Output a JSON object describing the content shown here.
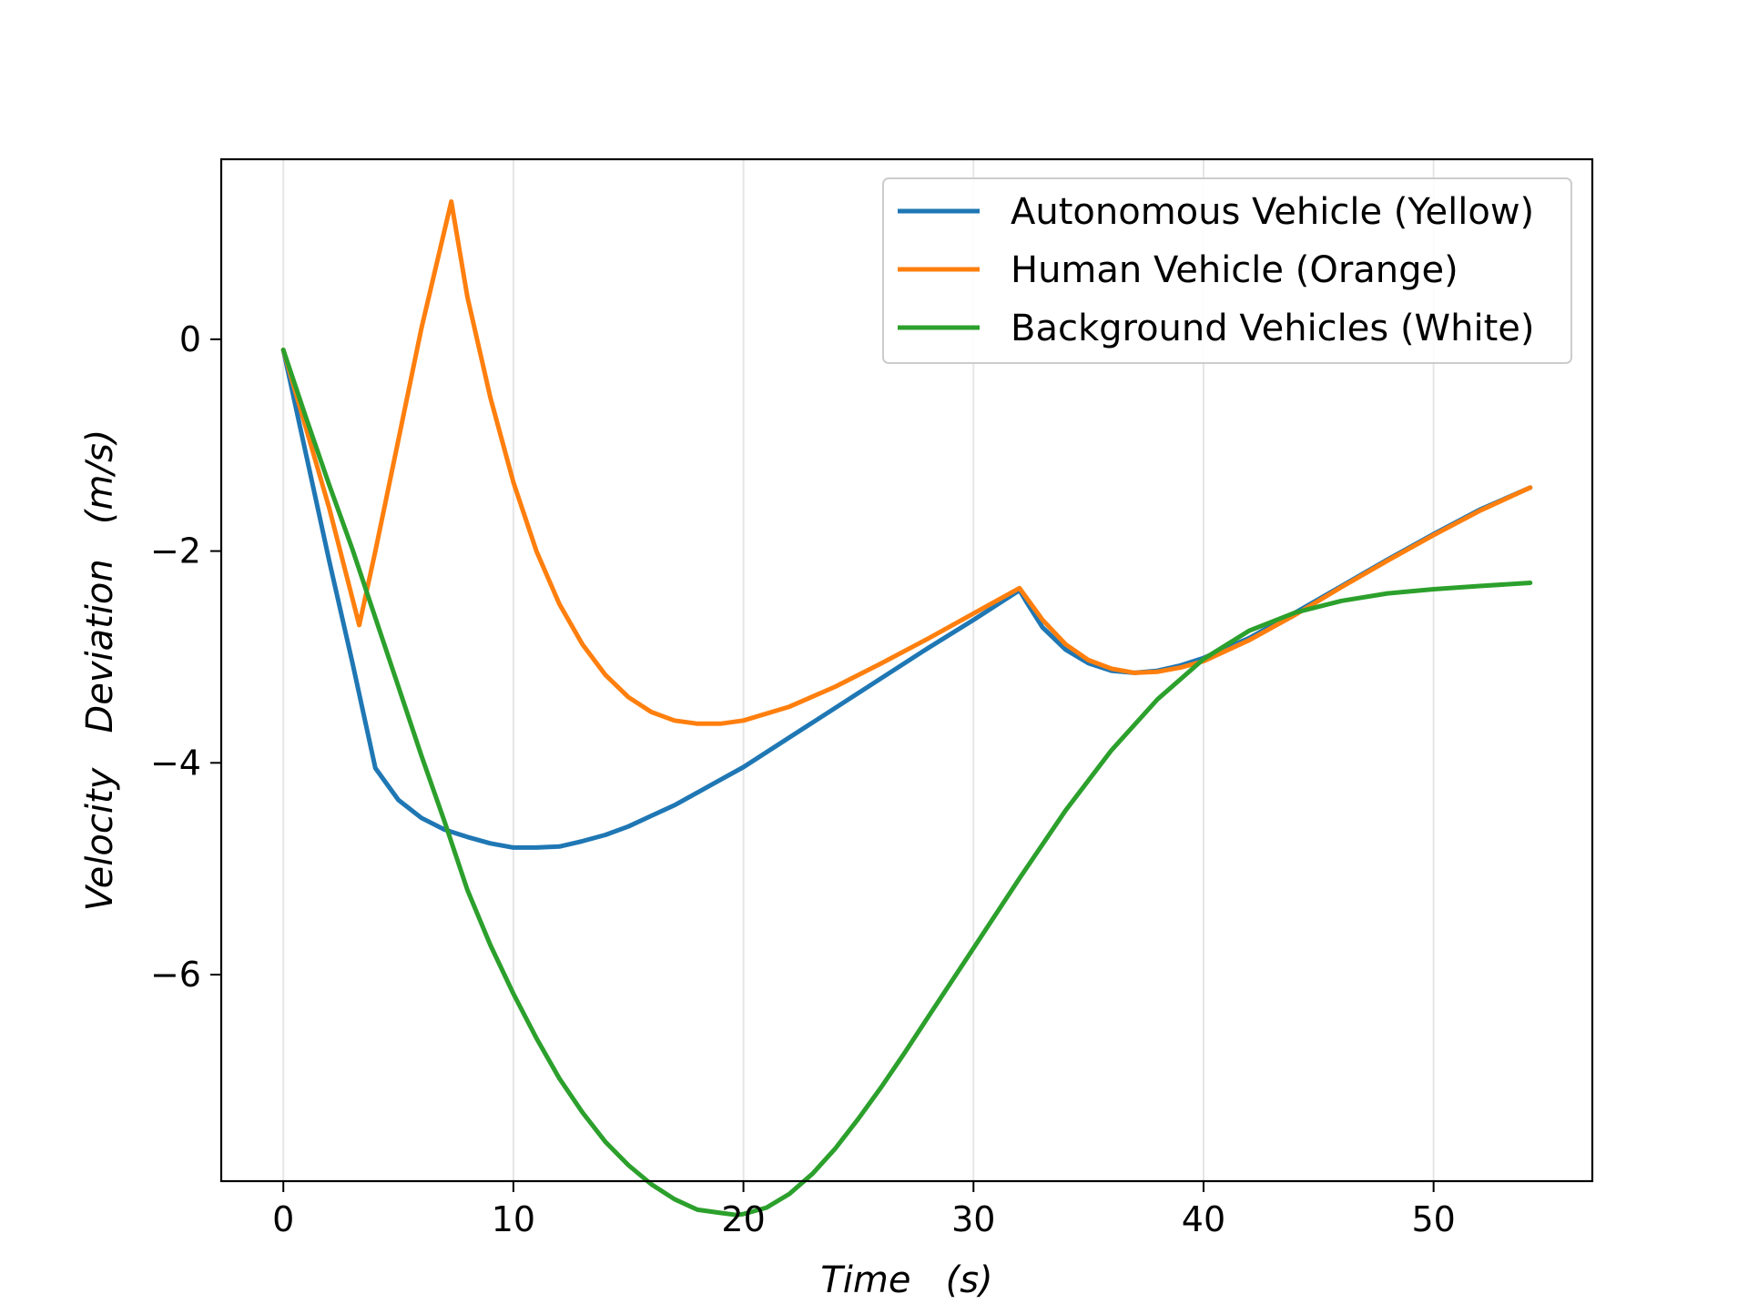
{
  "chart_data": {
    "type": "line",
    "title": "",
    "xlabel": "Time   (s)",
    "ylabel": "Velocity   Deviation   (m/s)",
    "xlim": [
      -2.7,
      56.9
    ],
    "ylim": [
      -7.95,
      1.7
    ],
    "xticks": [
      0,
      10,
      20,
      30,
      40,
      50
    ],
    "xtick_labels": [
      "0",
      "10",
      "20",
      "30",
      "40",
      "50"
    ],
    "yticks": [
      0,
      -2,
      -4,
      -6
    ],
    "ytick_labels": [
      "0",
      "−2",
      "−4",
      "−6"
    ],
    "grid": "vertical",
    "legend_position": "top-right",
    "series": [
      {
        "name": "Autonomous Vehicle (Yellow)",
        "color": "#1f77b4",
        "x": [
          0,
          1,
          2,
          3,
          4,
          5,
          6,
          7,
          8,
          9,
          10,
          11,
          12,
          13,
          14,
          15,
          16,
          17,
          18,
          19,
          20,
          22,
          24,
          26,
          28,
          30,
          32,
          32.3,
          33,
          34,
          35,
          36,
          37,
          38,
          39,
          40,
          42,
          44,
          46,
          48,
          50,
          52,
          54.2
        ],
        "y": [
          -0.1,
          -1.1,
          -2.1,
          -3.05,
          -4.05,
          -4.35,
          -4.52,
          -4.63,
          -4.7,
          -4.76,
          -4.8,
          -4.8,
          -4.79,
          -4.74,
          -4.68,
          -4.6,
          -4.5,
          -4.4,
          -4.28,
          -4.16,
          -4.04,
          -3.76,
          -3.48,
          -3.2,
          -2.92,
          -2.65,
          -2.37,
          -2.48,
          -2.72,
          -2.93,
          -3.06,
          -3.13,
          -3.15,
          -3.13,
          -3.08,
          -3.01,
          -2.82,
          -2.58,
          -2.33,
          -2.08,
          -1.84,
          -1.61,
          -1.4
        ]
      },
      {
        "name": "Human Vehicle (Orange)",
        "color": "#ff7f0e",
        "x": [
          0,
          1,
          2,
          3.3,
          4,
          5,
          6,
          7.3,
          8,
          9,
          10,
          11,
          12,
          13,
          14,
          15,
          16,
          17,
          18,
          19,
          20,
          22,
          24,
          26,
          28,
          30,
          32,
          33,
          34,
          35,
          36,
          37,
          38,
          39,
          40,
          42,
          44,
          46,
          48,
          50,
          52,
          54.2
        ],
        "y": [
          -0.1,
          -0.85,
          -1.6,
          -2.7,
          -2.0,
          -0.95,
          0.1,
          1.3,
          0.4,
          -0.55,
          -1.35,
          -2.0,
          -2.5,
          -2.88,
          -3.17,
          -3.38,
          -3.52,
          -3.6,
          -3.63,
          -3.63,
          -3.6,
          -3.47,
          -3.28,
          -3.06,
          -2.83,
          -2.59,
          -2.35,
          -2.65,
          -2.88,
          -3.03,
          -3.11,
          -3.15,
          -3.14,
          -3.1,
          -3.04,
          -2.84,
          -2.6,
          -2.34,
          -2.09,
          -1.85,
          -1.62,
          -1.4
        ]
      },
      {
        "name": "Background Vehicles (White)",
        "color": "#2ca02c",
        "x": [
          0,
          1,
          2,
          3,
          4,
          5,
          6,
          7,
          8,
          9,
          10,
          11,
          12,
          13,
          14,
          15,
          16,
          17,
          18,
          19,
          19.7,
          20,
          21,
          22,
          23,
          24,
          25,
          26,
          27,
          28,
          30,
          32,
          34,
          36,
          38,
          40,
          42,
          44,
          46,
          48,
          50,
          52,
          54.2
        ],
        "y": [
          -0.1,
          -0.75,
          -1.38,
          -1.98,
          -2.63,
          -3.28,
          -3.93,
          -4.55,
          -5.2,
          -5.72,
          -6.18,
          -6.6,
          -6.98,
          -7.3,
          -7.58,
          -7.8,
          -7.98,
          -8.12,
          -8.22,
          -8.25,
          -8.27,
          -8.26,
          -8.2,
          -8.07,
          -7.88,
          -7.64,
          -7.36,
          -7.06,
          -6.74,
          -6.41,
          -5.75,
          -5.09,
          -4.45,
          -3.88,
          -3.4,
          -3.02,
          -2.75,
          -2.58,
          -2.47,
          -2.4,
          -2.36,
          -2.33,
          -2.3
        ]
      }
    ]
  }
}
